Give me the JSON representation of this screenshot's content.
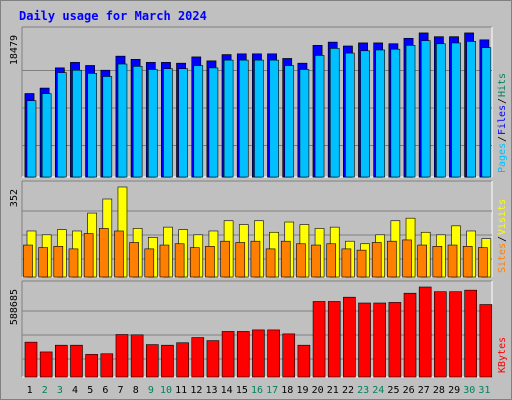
{
  "chart_data": {
    "title": "Daily usage for March 2024",
    "type": "bar",
    "categories": [
      "1",
      "2",
      "3",
      "4",
      "5",
      "6",
      "7",
      "8",
      "9",
      "10",
      "11",
      "12",
      "13",
      "14",
      "15",
      "16",
      "17",
      "18",
      "19",
      "20",
      "21",
      "22",
      "23",
      "24",
      "25",
      "26",
      "27",
      "28",
      "29",
      "30",
      "31"
    ],
    "weekend_days": [
      "2",
      "3",
      "9",
      "10",
      "16",
      "17",
      "23",
      "24",
      "30",
      "31"
    ],
    "colors": {
      "background": "#c0c0c0",
      "frame": "#808080",
      "plot": "#c0c0c0",
      "title": "#0000ff",
      "day_label": "#000000",
      "weekend_label": "#00805c",
      "hits": "#00805c",
      "files": "#0000ff",
      "pages": "#00c0ff",
      "visits": "#ffff00",
      "sites": "#ff8000",
      "kbytes": "#ff0000"
    },
    "panels": [
      {
        "name": "hits-files-pages",
        "max_label": "18479",
        "ymax": 18479,
        "legend": [
          {
            "text": "Pages",
            "color": "#00c0ff"
          },
          {
            "text": "/",
            "color": "#000000"
          },
          {
            "text": "Files",
            "color": "#0000ff"
          },
          {
            "text": "/",
            "color": "#000000"
          },
          {
            "text": "Hits",
            "color": "#00805c"
          }
        ],
        "series": [
          {
            "name": "Hits",
            "color": "#00805c",
            "values": [
              10700,
              11400,
              14000,
              14700,
              14300,
              13700,
              15500,
              15100,
              14700,
              14700,
              14600,
              15400,
              14900,
              15700,
              15800,
              15800,
              15800,
              15200,
              14600,
              16900,
              17300,
              16800,
              17200,
              17200,
              17100,
              17800,
              18479,
              18000,
              18000,
              18479,
              17600
            ]
          },
          {
            "name": "Files",
            "color": "#0000ff",
            "values": [
              10700,
              11400,
              14000,
              14700,
              14300,
              13700,
              15500,
              15100,
              14700,
              14700,
              14600,
              15400,
              14900,
              15700,
              15800,
              15800,
              15800,
              15200,
              14600,
              16900,
              17300,
              16800,
              17200,
              17200,
              17100,
              17800,
              18479,
              18000,
              18000,
              18479,
              17600
            ]
          },
          {
            "name": "Pages",
            "color": "#00c0ff",
            "values": [
              9800,
              10700,
              13400,
              13700,
              13300,
              12900,
              14500,
              14200,
              13800,
              13900,
              13900,
              14300,
              14000,
              15000,
              15000,
              15000,
              15000,
              14300,
              13800,
              15600,
              16500,
              15900,
              16200,
              16300,
              16400,
              16900,
              17500,
              17100,
              17200,
              17400,
              16600
            ]
          }
        ]
      },
      {
        "name": "visits-sites",
        "max_label": "352",
        "ymax": 352,
        "legend": [
          {
            "text": "Sites",
            "color": "#ff8000"
          },
          {
            "text": "/",
            "color": "#000000"
          },
          {
            "text": "Visits",
            "color": "#ffff00"
          }
        ],
        "series": [
          {
            "name": "Visits",
            "color": "#ffff00",
            "values": [
              180,
              165,
              185,
              180,
              250,
              305,
              352,
              190,
              155,
              195,
              185,
              165,
              180,
              220,
              205,
              220,
              175,
              215,
              205,
              190,
              195,
              140,
              130,
              165,
              220,
              230,
              175,
              165,
              200,
              180,
              150
            ]
          },
          {
            "name": "Sites",
            "color": "#ff8000",
            "values": [
              125,
              115,
              120,
              110,
              170,
              190,
              180,
              135,
              110,
              125,
              130,
              115,
              120,
              140,
              135,
              140,
              110,
              140,
              130,
              125,
              130,
              110,
              105,
              135,
              140,
              145,
              125,
              120,
              125,
              120,
              115
            ]
          }
        ]
      },
      {
        "name": "kbytes",
        "max_label": "588685",
        "ymax": 588685,
        "legend": [
          {
            "text": "KBytes",
            "color": "#ff0000"
          }
        ],
        "series": [
          {
            "name": "KBytes",
            "color": "#ff0000",
            "values": [
              228000,
              164000,
              208000,
              208000,
              148000,
              152000,
              278000,
              276000,
              212000,
              208000,
              224000,
              258000,
              238000,
              298000,
              298000,
              308000,
              308000,
              282000,
              208000,
              494000,
              494000,
              522000,
              484000,
              484000,
              488000,
              548000,
              588685,
              558000,
              558000,
              568000,
              474000
            ]
          }
        ]
      }
    ]
  }
}
